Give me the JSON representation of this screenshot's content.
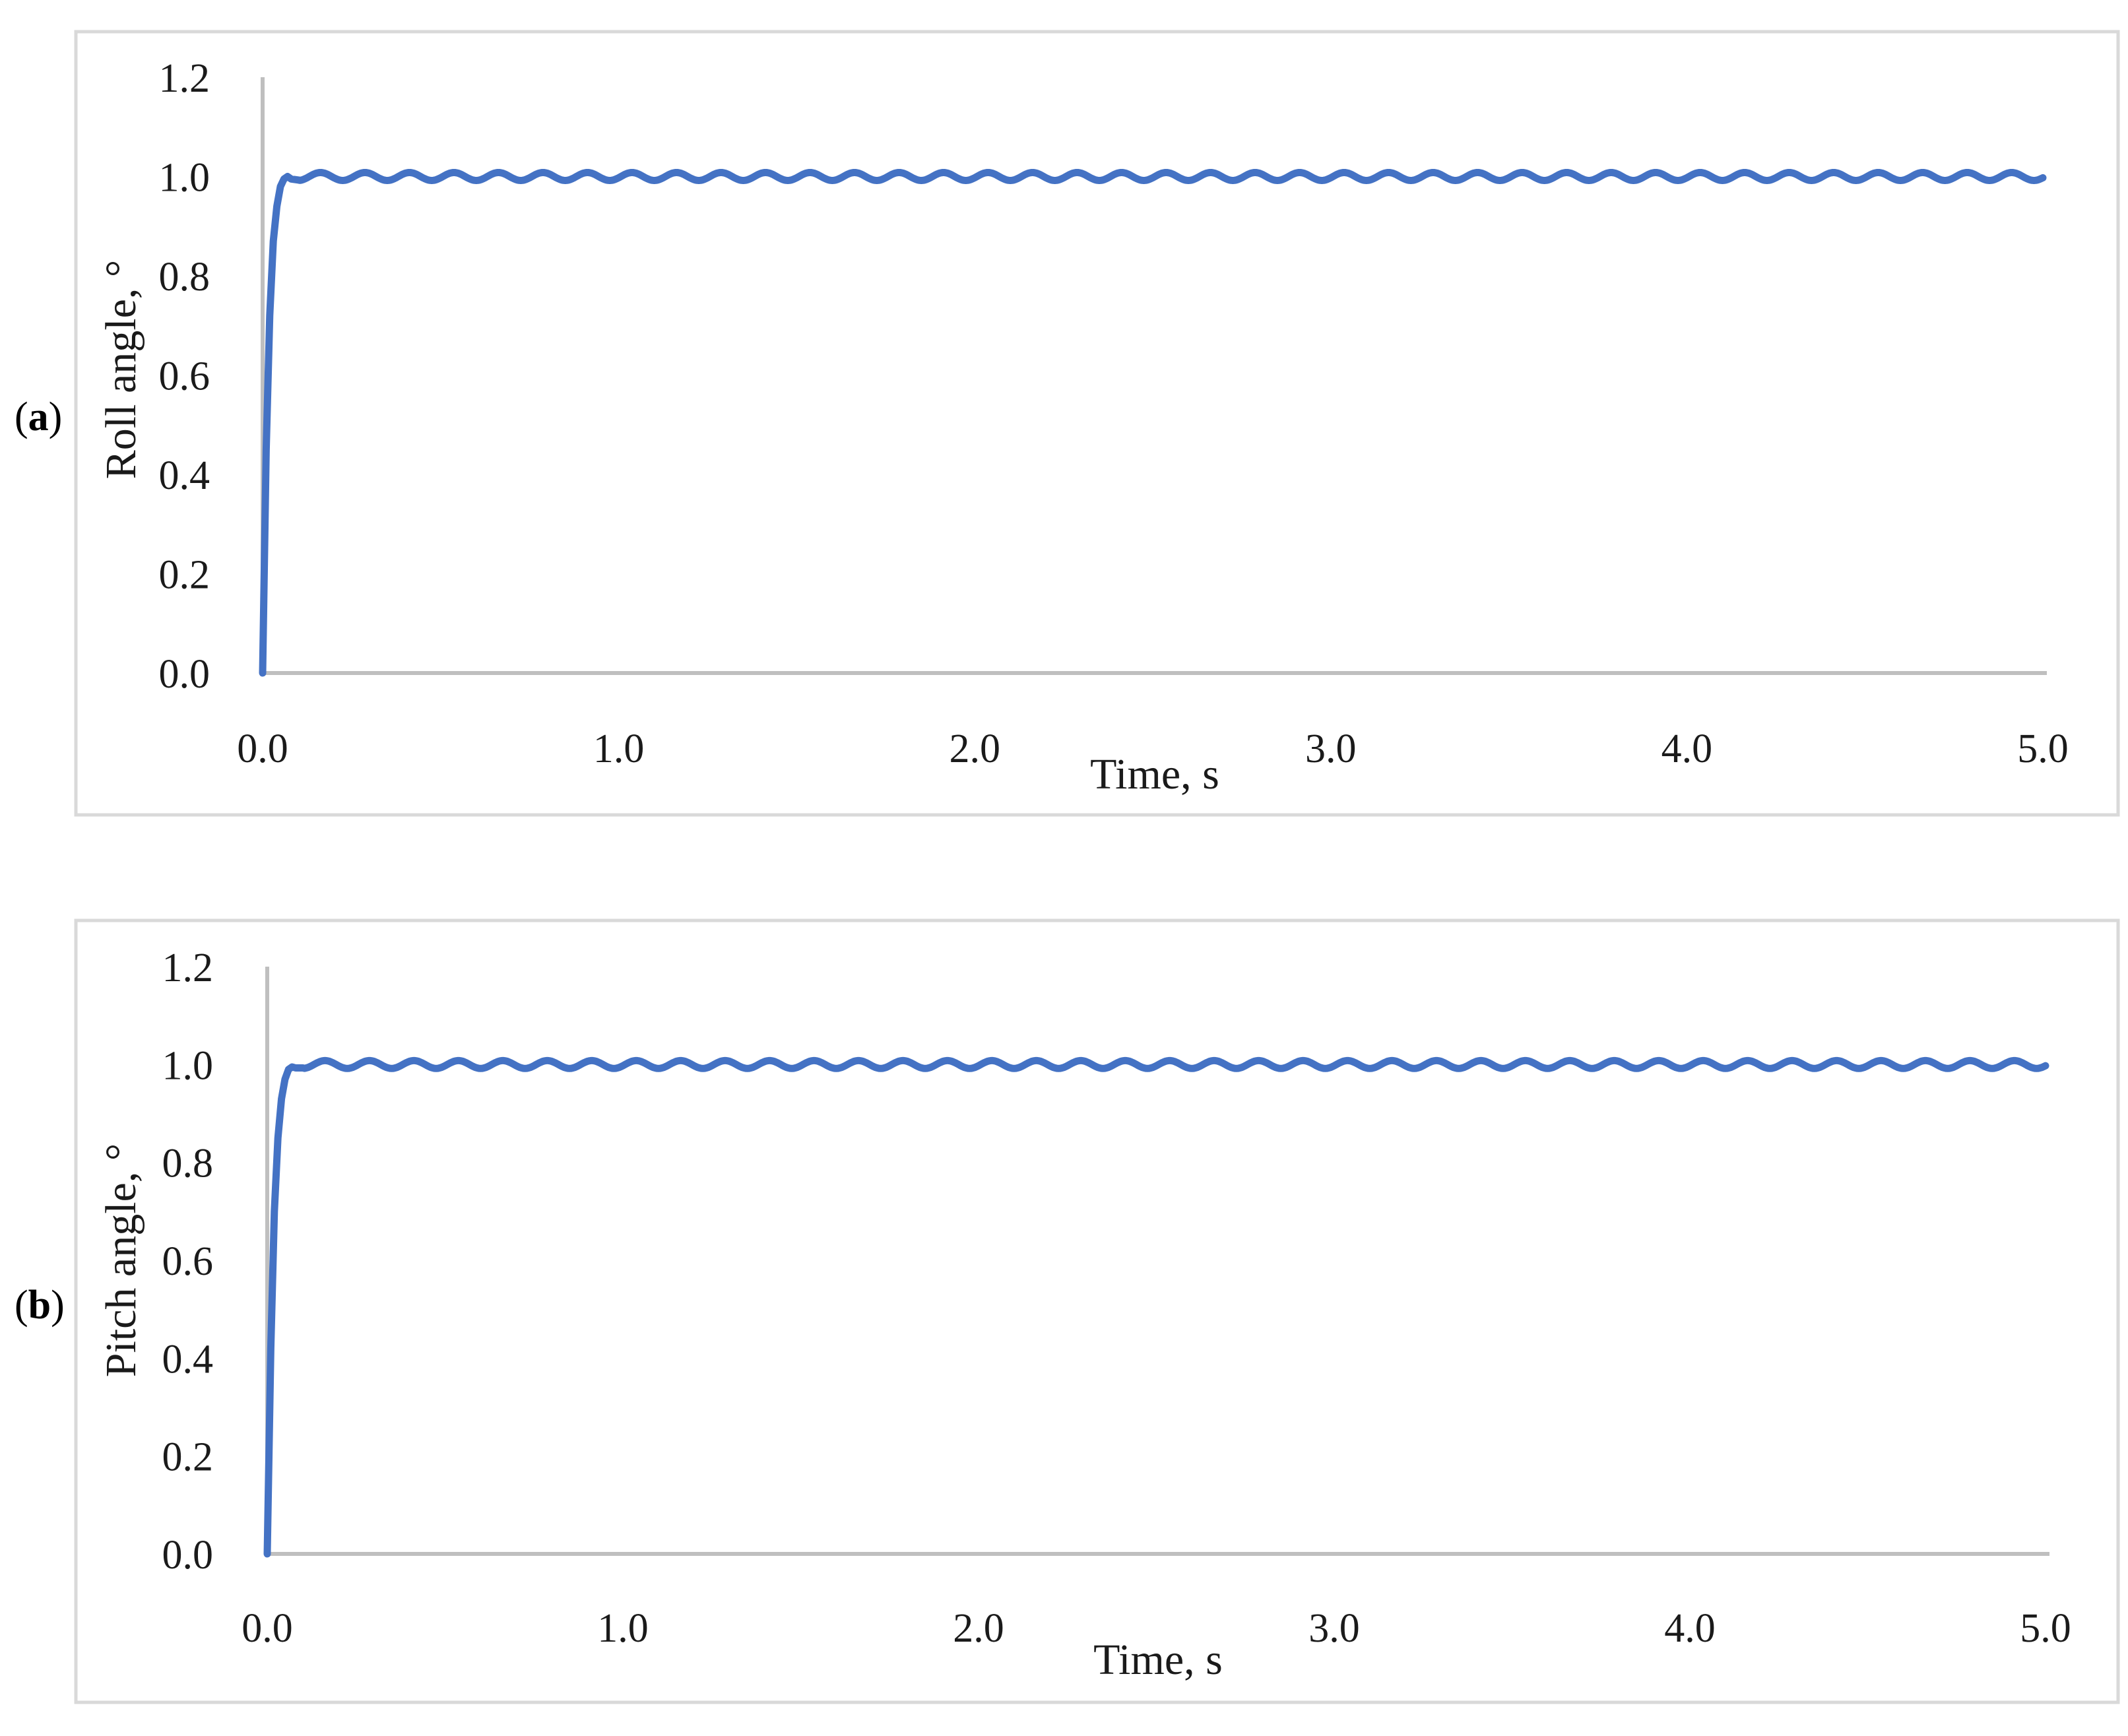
{
  "chart_data": [
    {
      "type": "line",
      "panel_label": "a",
      "xlabel": "Time, s",
      "ylabel": "Roll angle, °",
      "xlim": [
        0.0,
        5.0
      ],
      "ylim": [
        0.0,
        1.2
      ],
      "xticks": [
        "0.0",
        "1.0",
        "2.0",
        "3.0",
        "4.0",
        "5.0"
      ],
      "yticks": [
        "0.0",
        "0.2",
        "0.4",
        "0.6",
        "0.8",
        "1.0",
        "1.2"
      ],
      "grid": false,
      "series_color": "#4472c4",
      "series": [
        {
          "x": [
            0.0,
            0.01,
            0.02,
            0.03,
            0.04,
            0.05,
            0.06,
            0.07,
            0.08,
            0.1,
            0.12,
            0.15,
            0.2,
            0.25,
            0.3,
            0.5,
            1.0,
            1.5,
            2.0,
            2.5,
            3.0,
            3.5,
            4.0,
            4.5,
            5.0
          ],
          "y": [
            0.0,
            0.45,
            0.72,
            0.87,
            0.94,
            0.98,
            0.995,
            1.0,
            0.995,
            0.993,
            1.0,
            1.007,
            0.993,
            1.007,
            0.993,
            1.0,
            1.0,
            1.0,
            1.0,
            1.0,
            1.0,
            1.0,
            1.0,
            1.0,
            0.995
          ],
          "steady_state": 1.0,
          "oscillation_amplitude": 0.008,
          "oscillation_period": 0.125
        }
      ]
    },
    {
      "type": "line",
      "panel_label": "b",
      "xlabel": "Time, s",
      "ylabel": "Pitch angle, °",
      "xlim": [
        0.0,
        5.0
      ],
      "ylim": [
        0.0,
        1.2
      ],
      "xticks": [
        "0.0",
        "1.0",
        "2.0",
        "3.0",
        "4.0",
        "5.0"
      ],
      "yticks": [
        "0.0",
        "0.2",
        "0.4",
        "0.6",
        "0.8",
        "1.0",
        "1.2"
      ],
      "grid": false,
      "series_color": "#4472c4",
      "series": [
        {
          "x": [
            0.0,
            0.01,
            0.02,
            0.03,
            0.04,
            0.05,
            0.06,
            0.07,
            0.08,
            0.1,
            0.12,
            0.15,
            0.2,
            0.25,
            0.3,
            0.5,
            1.0,
            1.5,
            2.0,
            2.5,
            3.0,
            3.5,
            4.0,
            4.5,
            5.0
          ],
          "y": [
            0.0,
            0.42,
            0.7,
            0.85,
            0.93,
            0.97,
            0.99,
            0.995,
            0.993,
            0.993,
            1.0,
            1.007,
            0.993,
            1.007,
            0.993,
            1.0,
            1.0,
            1.0,
            1.0,
            1.0,
            1.0,
            1.0,
            1.0,
            1.0,
            0.995
          ],
          "steady_state": 1.0,
          "oscillation_amplitude": 0.008,
          "oscillation_period": 0.125
        }
      ]
    }
  ]
}
